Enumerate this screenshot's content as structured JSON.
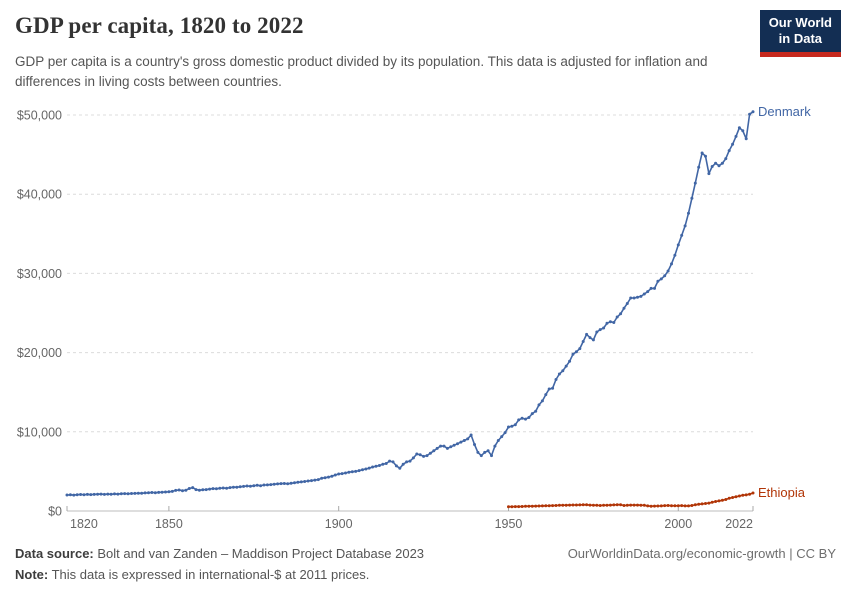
{
  "header": {
    "title": "GDP per capita, 1820 to 2022",
    "subtitle": "GDP per capita is a country's gross domestic product divided by its population. This data is adjusted for inflation and differences in living costs between countries.",
    "logo": {
      "line1": "Our World",
      "line2": "in Data"
    }
  },
  "chart_data": {
    "type": "line",
    "title": "GDP per capita, 1820 to 2022",
    "xlabel": "",
    "ylabel": "",
    "xlim": [
      1820,
      2022
    ],
    "ylim": [
      0,
      50000
    ],
    "grid": "horizontal-dashed",
    "legend_position": "end-of-line-labels",
    "unit": "international-$ at 2011 prices",
    "y_ticks": [
      {
        "value": 0,
        "label": "$0"
      },
      {
        "value": 10000,
        "label": "$10,000"
      },
      {
        "value": 20000,
        "label": "$20,000"
      },
      {
        "value": 30000,
        "label": "$30,000"
      },
      {
        "value": 40000,
        "label": "$40,000"
      },
      {
        "value": 50000,
        "label": "$50,000"
      }
    ],
    "x_ticks": [
      {
        "value": 1820,
        "label": "1820",
        "align": "start"
      },
      {
        "value": 1850,
        "label": "1850",
        "align": "middle"
      },
      {
        "value": 1900,
        "label": "1900",
        "align": "middle"
      },
      {
        "value": 1950,
        "label": "1950",
        "align": "middle"
      },
      {
        "value": 2000,
        "label": "2000",
        "align": "middle"
      },
      {
        "value": 2022,
        "label": "2022",
        "align": "end"
      }
    ],
    "series": [
      {
        "name": "Denmark",
        "color": "#4166A5",
        "start_year": 1820,
        "values": [
          2020,
          2040,
          2010,
          2060,
          2080,
          2060,
          2090,
          2070,
          2100,
          2120,
          2130,
          2100,
          2140,
          2110,
          2160,
          2140,
          2180,
          2200,
          2170,
          2210,
          2220,
          2250,
          2230,
          2280,
          2300,
          2330,
          2310,
          2350,
          2380,
          2400,
          2430,
          2480,
          2600,
          2650,
          2560,
          2620,
          2840,
          2950,
          2700,
          2620,
          2680,
          2700,
          2760,
          2830,
          2800,
          2870,
          2900,
          2870,
          2960,
          3000,
          3000,
          3060,
          3100,
          3160,
          3120,
          3200,
          3240,
          3200,
          3280,
          3300,
          3330,
          3380,
          3420,
          3460,
          3470,
          3440,
          3500,
          3560,
          3620,
          3680,
          3730,
          3790,
          3840,
          3900,
          3960,
          4130,
          4200,
          4280,
          4400,
          4550,
          4670,
          4720,
          4800,
          4900,
          4960,
          5000,
          5100,
          5220,
          5300,
          5420,
          5550,
          5650,
          5750,
          5900,
          6000,
          6300,
          6200,
          5700,
          5400,
          5900,
          6200,
          6300,
          6700,
          7200,
          7100,
          6900,
          7000,
          7300,
          7600,
          7900,
          8200,
          8200,
          7900,
          8100,
          8300,
          8500,
          8700,
          8900,
          9100,
          9600,
          8400,
          7400,
          7000,
          7400,
          7600,
          7000,
          8200,
          8900,
          9400,
          9900,
          10600,
          10700,
          10900,
          11500,
          11700,
          11600,
          11800,
          12300,
          12600,
          13400,
          13900,
          14700,
          15400,
          15500,
          16600,
          17300,
          17700,
          18300,
          18900,
          19800,
          20100,
          20500,
          21400,
          22300,
          21900,
          21600,
          22600,
          22900,
          23100,
          23700,
          23900,
          23800,
          24500,
          24900,
          25600,
          26200,
          26900,
          26900,
          27000,
          27100,
          27400,
          27700,
          28100,
          28100,
          29000,
          29300,
          29700,
          30300,
          31200,
          32300,
          33600,
          34800,
          36000,
          37600,
          39500,
          41400,
          43400,
          45200,
          44800,
          42600,
          43500,
          43900,
          43600,
          43900,
          44500,
          45500,
          46300,
          47300,
          48400,
          48000,
          47000,
          50100,
          50400
        ]
      },
      {
        "name": "Ethiopia",
        "color": "#B13507",
        "start_year": 1950,
        "values": [
          540,
          545,
          555,
          560,
          565,
          590,
          600,
          610,
          620,
          635,
          650,
          660,
          675,
          685,
          700,
          720,
          730,
          735,
          745,
          755,
          760,
          775,
          790,
          780,
          750,
          730,
          720,
          700,
          720,
          735,
          750,
          770,
          790,
          800,
          700,
          720,
          740,
          750,
          745,
          730,
          720,
          640,
          610,
          620,
          630,
          640,
          680,
          690,
          670,
          660,
          660,
          680,
          650,
          650,
          700,
          780,
          840,
          900,
          950,
          1000,
          1100,
          1200,
          1270,
          1350,
          1450,
          1600,
          1700,
          1800,
          1900,
          2000,
          2030,
          2120,
          2270
        ]
      }
    ]
  },
  "footer": {
    "source_label": "Data source:",
    "source_text": " Bolt and van Zanden – Maddison Project Database 2023",
    "note_label": "Note:",
    "note_text": " This data is expressed in international-$ at 2011 prices.",
    "link": "OurWorldinData.org/economic-growth",
    "separator": " | ",
    "license": "CC BY"
  }
}
